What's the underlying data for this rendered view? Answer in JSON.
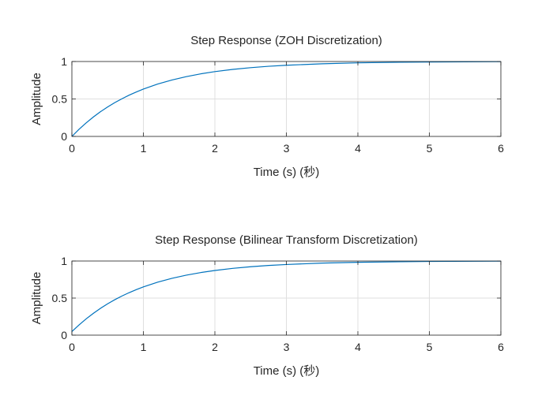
{
  "chart_data": [
    {
      "type": "line",
      "title": "Step Response (ZOH Discretization)",
      "xlabel": "Time (s) (秒)",
      "ylabel": "Amplitude",
      "xlim": [
        0,
        6
      ],
      "ylim": [
        0,
        1
      ],
      "xticks": [
        0,
        1,
        2,
        3,
        4,
        5,
        6
      ],
      "yticks": [
        0,
        0.5,
        1
      ],
      "xtick_labels": [
        "0",
        "1",
        "2",
        "3",
        "4",
        "5",
        "6"
      ],
      "ytick_labels": [
        "0",
        "0.5",
        "1"
      ],
      "grid": true,
      "series": [
        {
          "color": "#0072BD",
          "x": [
            0,
            0.1,
            0.2,
            0.3,
            0.4,
            0.5,
            0.6,
            0.7,
            0.8,
            0.9,
            1.0,
            1.2,
            1.4,
            1.6,
            1.8,
            2.0,
            2.25,
            2.5,
            2.75,
            3.0,
            3.5,
            4.0,
            4.6,
            5.0,
            6.0
          ],
          "y": [
            0,
            0.095,
            0.181,
            0.259,
            0.33,
            0.393,
            0.451,
            0.503,
            0.551,
            0.593,
            0.632,
            0.699,
            0.753,
            0.798,
            0.835,
            0.865,
            0.895,
            0.918,
            0.936,
            0.95,
            0.97,
            0.982,
            0.99,
            0.993,
            0.998
          ]
        }
      ]
    },
    {
      "type": "line",
      "title": "Step Response (Bilinear Transform Discretization)",
      "xlabel": "Time (s) (秒)",
      "ylabel": "Amplitude",
      "xlim": [
        0,
        6
      ],
      "ylim": [
        0,
        1
      ],
      "xticks": [
        0,
        1,
        2,
        3,
        4,
        5,
        6
      ],
      "yticks": [
        0,
        0.5,
        1
      ],
      "xtick_labels": [
        "0",
        "1",
        "2",
        "3",
        "4",
        "5",
        "6"
      ],
      "ytick_labels": [
        "0",
        "0.5",
        "1"
      ],
      "grid": true,
      "series": [
        {
          "color": "#0072BD",
          "x": [
            0,
            0.1,
            0.2,
            0.3,
            0.4,
            0.5,
            0.6,
            0.7,
            0.8,
            0.9,
            1.0,
            1.2,
            1.4,
            1.6,
            1.8,
            2.0,
            2.25,
            2.5,
            2.75,
            3.0,
            3.5,
            4.0,
            4.6,
            5.0,
            6.0
          ],
          "y": [
            0.048,
            0.138,
            0.22,
            0.294,
            0.362,
            0.423,
            0.478,
            0.528,
            0.573,
            0.614,
            0.651,
            0.715,
            0.767,
            0.809,
            0.844,
            0.872,
            0.901,
            0.923,
            0.94,
            0.953,
            0.972,
            0.983,
            0.99,
            0.994,
            0.998
          ]
        }
      ]
    }
  ]
}
